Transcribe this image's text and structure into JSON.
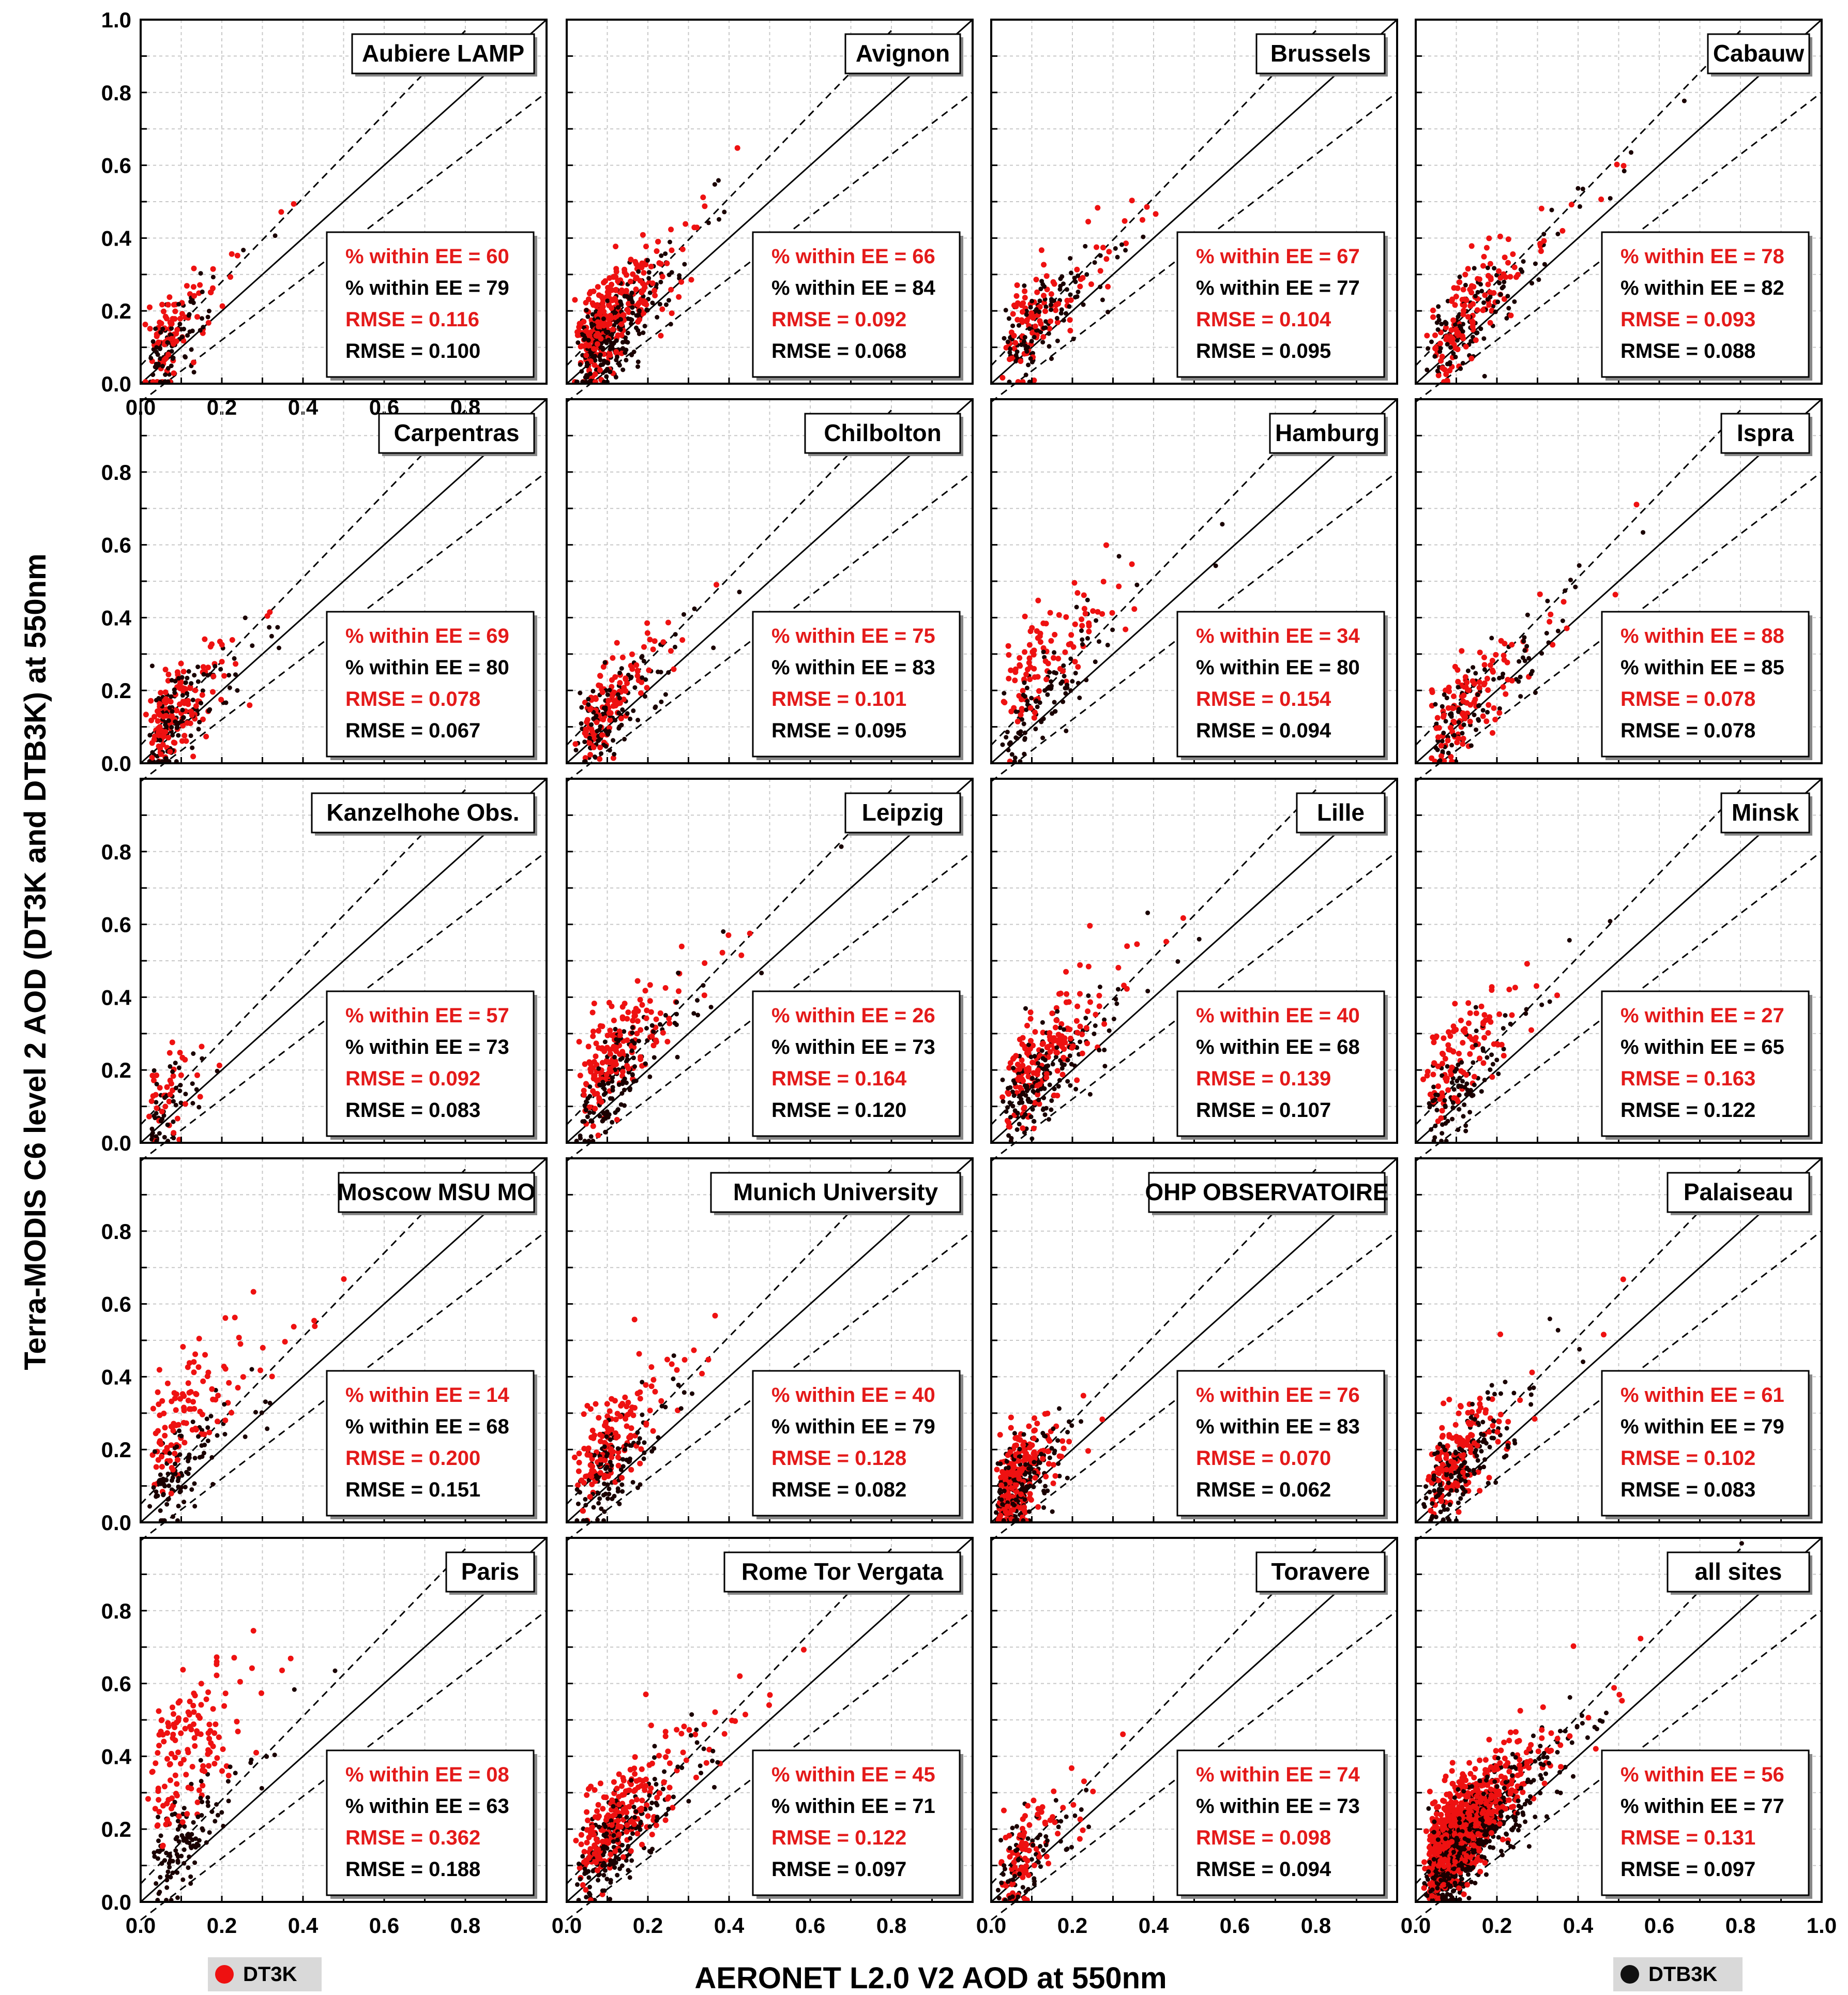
{
  "figure": {
    "ylabel": "Terra-MODIS C6 level 2 AOD (DT3K and DTB3K) at 550nm",
    "xlabel": "AERONET L2.0 V2 AOD at 550nm",
    "colors": {
      "dt3k": "#ee1111",
      "dtb3k": "#1a0000",
      "ee_red": "#e41a1a"
    },
    "legend": {
      "dt3k": "DT3K",
      "dtb3k": "DTB3K"
    },
    "stat_labels": {
      "within": "% within EE =",
      "rmse": "RMSE ="
    }
  },
  "chart_data": [
    {
      "type": "scatter",
      "title": "Aubiere LAMP",
      "xlim": [
        0,
        1
      ],
      "ylim": [
        0,
        1
      ],
      "xticks": [
        "0.0",
        "0.2",
        "0.4",
        "0.6",
        "0.8"
      ],
      "yticks": [
        "0.0",
        "0.2",
        "0.4",
        "0.6",
        "0.8",
        "1.0"
      ],
      "stats": {
        "dt3k_within_ee": "60",
        "dtb3k_within_ee": "79",
        "dt3k_rmse": "0.116",
        "dtb3k_rmse": "0.100"
      },
      "sample": {
        "n": 180,
        "xmax": 0.45,
        "xpeak": 0.09,
        "bias_dt": 0.07,
        "bias_dtb": 0.02
      }
    },
    {
      "type": "scatter",
      "title": "Avignon",
      "xlim": [
        0,
        1
      ],
      "ylim": [
        0,
        1
      ],
      "xticks": [],
      "yticks": [],
      "stats": {
        "dt3k_within_ee": "66",
        "dtb3k_within_ee": "84",
        "dt3k_rmse": "0.092",
        "dtb3k_rmse": "0.068"
      },
      "sample": {
        "n": 560,
        "xmax": 0.5,
        "xpeak": 0.12,
        "bias_dt": 0.07,
        "bias_dtb": 0.02
      }
    },
    {
      "type": "scatter",
      "title": "Brussels",
      "xlim": [
        0,
        1
      ],
      "ylim": [
        0,
        1
      ],
      "xticks": [],
      "yticks": [],
      "stats": {
        "dt3k_within_ee": "67",
        "dtb3k_within_ee": "77",
        "dt3k_rmse": "0.104",
        "dtb3k_rmse": "0.095"
      },
      "sample": {
        "n": 220,
        "xmax": 0.5,
        "xpeak": 0.14,
        "bias_dt": 0.06,
        "bias_dtb": 0.03
      }
    },
    {
      "type": "scatter",
      "title": "Cabauw",
      "xlim": [
        0,
        1
      ],
      "ylim": [
        0,
        1
      ],
      "xticks": [],
      "yticks": [],
      "stats": {
        "dt3k_within_ee": "78",
        "dtb3k_within_ee": "82",
        "dt3k_rmse": "0.093",
        "dtb3k_rmse": "0.088"
      },
      "sample": {
        "n": 260,
        "xmax": 0.6,
        "xpeak": 0.15,
        "bias_dt": 0.05,
        "bias_dtb": 0.03
      }
    },
    {
      "type": "scatter",
      "title": "Carpentras",
      "xlim": [
        0,
        1
      ],
      "ylim": [
        0,
        1
      ],
      "xticks": [],
      "yticks": [
        "0.0",
        "0.2",
        "0.4",
        "0.6",
        "0.8"
      ],
      "stats": {
        "dt3k_within_ee": "69",
        "dtb3k_within_ee": "80",
        "dt3k_rmse": "0.078",
        "dtb3k_rmse": "0.067"
      },
      "sample": {
        "n": 260,
        "xmax": 0.45,
        "xpeak": 0.1,
        "bias_dt": 0.05,
        "bias_dtb": 0.03
      }
    },
    {
      "type": "scatter",
      "title": "Chilbolton",
      "xlim": [
        0,
        1
      ],
      "ylim": [
        0,
        1
      ],
      "xticks": [],
      "yticks": [],
      "stats": {
        "dt3k_within_ee": "75",
        "dtb3k_within_ee": "83",
        "dt3k_rmse": "0.101",
        "dtb3k_rmse": "0.095"
      },
      "sample": {
        "n": 240,
        "xmax": 0.5,
        "xpeak": 0.12,
        "bias_dt": 0.05,
        "bias_dtb": 0.03
      }
    },
    {
      "type": "scatter",
      "title": "Hamburg",
      "xlim": [
        0,
        1
      ],
      "ylim": [
        0,
        1
      ],
      "xticks": [],
      "yticks": [],
      "stats": {
        "dt3k_within_ee": "34",
        "dtb3k_within_ee": "80",
        "dt3k_rmse": "0.154",
        "dtb3k_rmse": "0.094"
      },
      "sample": {
        "n": 200,
        "xmax": 0.5,
        "xpeak": 0.14,
        "bias_dt": 0.14,
        "bias_dtb": 0.03
      }
    },
    {
      "type": "scatter",
      "title": "Ispra",
      "xlim": [
        0,
        1
      ],
      "ylim": [
        0,
        1
      ],
      "xticks": [],
      "yticks": [],
      "stats": {
        "dt3k_within_ee": "88",
        "dtb3k_within_ee": "85",
        "dt3k_rmse": "0.078",
        "dtb3k_rmse": "0.078"
      },
      "sample": {
        "n": 220,
        "xmax": 0.7,
        "xpeak": 0.15,
        "bias_dt": 0.03,
        "bias_dtb": 0.02
      }
    },
    {
      "type": "scatter",
      "title": "Kanzelhohe Obs.",
      "xlim": [
        0,
        1
      ],
      "ylim": [
        0,
        1
      ],
      "xticks": [],
      "yticks": [
        "0.0",
        "0.2",
        "0.4",
        "0.6",
        "0.8"
      ],
      "stats": {
        "dt3k_within_ee": "57",
        "dtb3k_within_ee": "73",
        "dt3k_rmse": "0.092",
        "dtb3k_rmse": "0.083"
      },
      "sample": {
        "n": 90,
        "xmax": 0.3,
        "xpeak": 0.08,
        "bias_dt": 0.05,
        "bias_dtb": 0.02
      }
    },
    {
      "type": "scatter",
      "title": "Leipzig",
      "xlim": [
        0,
        1
      ],
      "ylim": [
        0,
        1
      ],
      "xticks": [],
      "yticks": [],
      "stats": {
        "dt3k_within_ee": "26",
        "dtb3k_within_ee": "73",
        "dt3k_rmse": "0.164",
        "dtb3k_rmse": "0.120"
      },
      "sample": {
        "n": 320,
        "xmax": 0.6,
        "xpeak": 0.14,
        "bias_dt": 0.12,
        "bias_dtb": 0.04
      }
    },
    {
      "type": "scatter",
      "title": "Lille",
      "xlim": [
        0,
        1
      ],
      "ylim": [
        0,
        1
      ],
      "xticks": [],
      "yticks": [],
      "stats": {
        "dt3k_within_ee": "40",
        "dtb3k_within_ee": "68",
        "dt3k_rmse": "0.139",
        "dtb3k_rmse": "0.107"
      },
      "sample": {
        "n": 340,
        "xmax": 0.6,
        "xpeak": 0.14,
        "bias_dt": 0.1,
        "bias_dtb": 0.04
      }
    },
    {
      "type": "scatter",
      "title": "Minsk",
      "xlim": [
        0,
        1
      ],
      "ylim": [
        0,
        1
      ],
      "xticks": [],
      "yticks": [],
      "stats": {
        "dt3k_within_ee": "27",
        "dtb3k_within_ee": "65",
        "dt3k_rmse": "0.163",
        "dtb3k_rmse": "0.122"
      },
      "sample": {
        "n": 200,
        "xmax": 0.55,
        "xpeak": 0.12,
        "bias_dt": 0.13,
        "bias_dtb": 0.04
      }
    },
    {
      "type": "scatter",
      "title": "Moscow MSU MO",
      "xlim": [
        0,
        1
      ],
      "ylim": [
        0,
        1
      ],
      "xticks": [],
      "yticks": [
        "0.0",
        "0.2",
        "0.4",
        "0.6",
        "0.8"
      ],
      "stats": {
        "dt3k_within_ee": "14",
        "dtb3k_within_ee": "68",
        "dt3k_rmse": "0.200",
        "dtb3k_rmse": "0.151"
      },
      "sample": {
        "n": 220,
        "xmax": 0.6,
        "xpeak": 0.12,
        "bias_dt": 0.18,
        "bias_dtb": 0.04
      }
    },
    {
      "type": "scatter",
      "title": "Munich University",
      "xlim": [
        0,
        1
      ],
      "ylim": [
        0,
        1
      ],
      "xticks": [],
      "yticks": [],
      "stats": {
        "dt3k_within_ee": "40",
        "dtb3k_within_ee": "79",
        "dt3k_rmse": "0.128",
        "dtb3k_rmse": "0.082"
      },
      "sample": {
        "n": 260,
        "xmax": 0.5,
        "xpeak": 0.12,
        "bias_dt": 0.1,
        "bias_dtb": 0.03
      }
    },
    {
      "type": "scatter",
      "title": "OHP OBSERVATOIRE",
      "xlim": [
        0,
        1
      ],
      "ylim": [
        0,
        1
      ],
      "xticks": [],
      "yticks": [],
      "stats": {
        "dt3k_within_ee": "76",
        "dtb3k_within_ee": "83",
        "dt3k_rmse": "0.070",
        "dtb3k_rmse": "0.062"
      },
      "sample": {
        "n": 460,
        "xmax": 0.45,
        "xpeak": 0.07,
        "bias_dt": 0.05,
        "bias_dtb": 0.03
      }
    },
    {
      "type": "scatter",
      "title": "Palaiseau",
      "xlim": [
        0,
        1
      ],
      "ylim": [
        0,
        1
      ],
      "xticks": [],
      "yticks": [],
      "stats": {
        "dt3k_within_ee": "61",
        "dtb3k_within_ee": "79",
        "dt3k_rmse": "0.102",
        "dtb3k_rmse": "0.083"
      },
      "sample": {
        "n": 320,
        "xmax": 0.55,
        "xpeak": 0.12,
        "bias_dt": 0.07,
        "bias_dtb": 0.03
      }
    },
    {
      "type": "scatter",
      "title": "Paris",
      "xlim": [
        0,
        1
      ],
      "ylim": [
        0,
        1
      ],
      "xticks": [
        "0.0",
        "0.2",
        "0.4",
        "0.6",
        "0.8"
      ],
      "yticks": [
        "0.0",
        "0.2",
        "0.4",
        "0.6",
        "0.8"
      ],
      "stats": {
        "dt3k_within_ee": "08",
        "dtb3k_within_ee": "63",
        "dt3k_rmse": "0.362",
        "dtb3k_rmse": "0.188"
      },
      "sample": {
        "n": 260,
        "xmax": 0.55,
        "xpeak": 0.12,
        "bias_dt": 0.3,
        "bias_dtb": 0.06
      }
    },
    {
      "type": "scatter",
      "title": "Rome Tor Vergata",
      "xlim": [
        0,
        1
      ],
      "ylim": [
        0,
        1
      ],
      "xticks": [
        "0.0",
        "0.2",
        "0.4",
        "0.6",
        "0.8"
      ],
      "yticks": [],
      "stats": {
        "dt3k_within_ee": "45",
        "dtb3k_within_ee": "71",
        "dt3k_rmse": "0.122",
        "dtb3k_rmse": "0.097"
      },
      "sample": {
        "n": 440,
        "xmax": 0.55,
        "xpeak": 0.14,
        "bias_dt": 0.09,
        "bias_dtb": 0.04
      }
    },
    {
      "type": "scatter",
      "title": "Toravere",
      "xlim": [
        0,
        1
      ],
      "ylim": [
        0,
        1
      ],
      "xticks": [
        "0.0",
        "0.2",
        "0.4",
        "0.6",
        "0.8"
      ],
      "yticks": [],
      "stats": {
        "dt3k_within_ee": "74",
        "dtb3k_within_ee": "73",
        "dt3k_rmse": "0.098",
        "dtb3k_rmse": "0.094"
      },
      "sample": {
        "n": 170,
        "xmax": 0.5,
        "xpeak": 0.1,
        "bias_dt": 0.05,
        "bias_dtb": 0.03
      }
    },
    {
      "type": "scatter",
      "title": "all sites",
      "xlim": [
        0,
        1
      ],
      "ylim": [
        0,
        1
      ],
      "xticks": [
        "0.0",
        "0.2",
        "0.4",
        "0.6",
        "0.8",
        "1.0"
      ],
      "yticks": [],
      "stats": {
        "dt3k_within_ee": "56",
        "dtb3k_within_ee": "77",
        "dt3k_rmse": "0.131",
        "dtb3k_rmse": "0.097"
      },
      "sample": {
        "n": 1500,
        "xmax": 0.8,
        "xpeak": 0.13,
        "bias_dt": 0.08,
        "bias_dtb": 0.03
      }
    }
  ]
}
